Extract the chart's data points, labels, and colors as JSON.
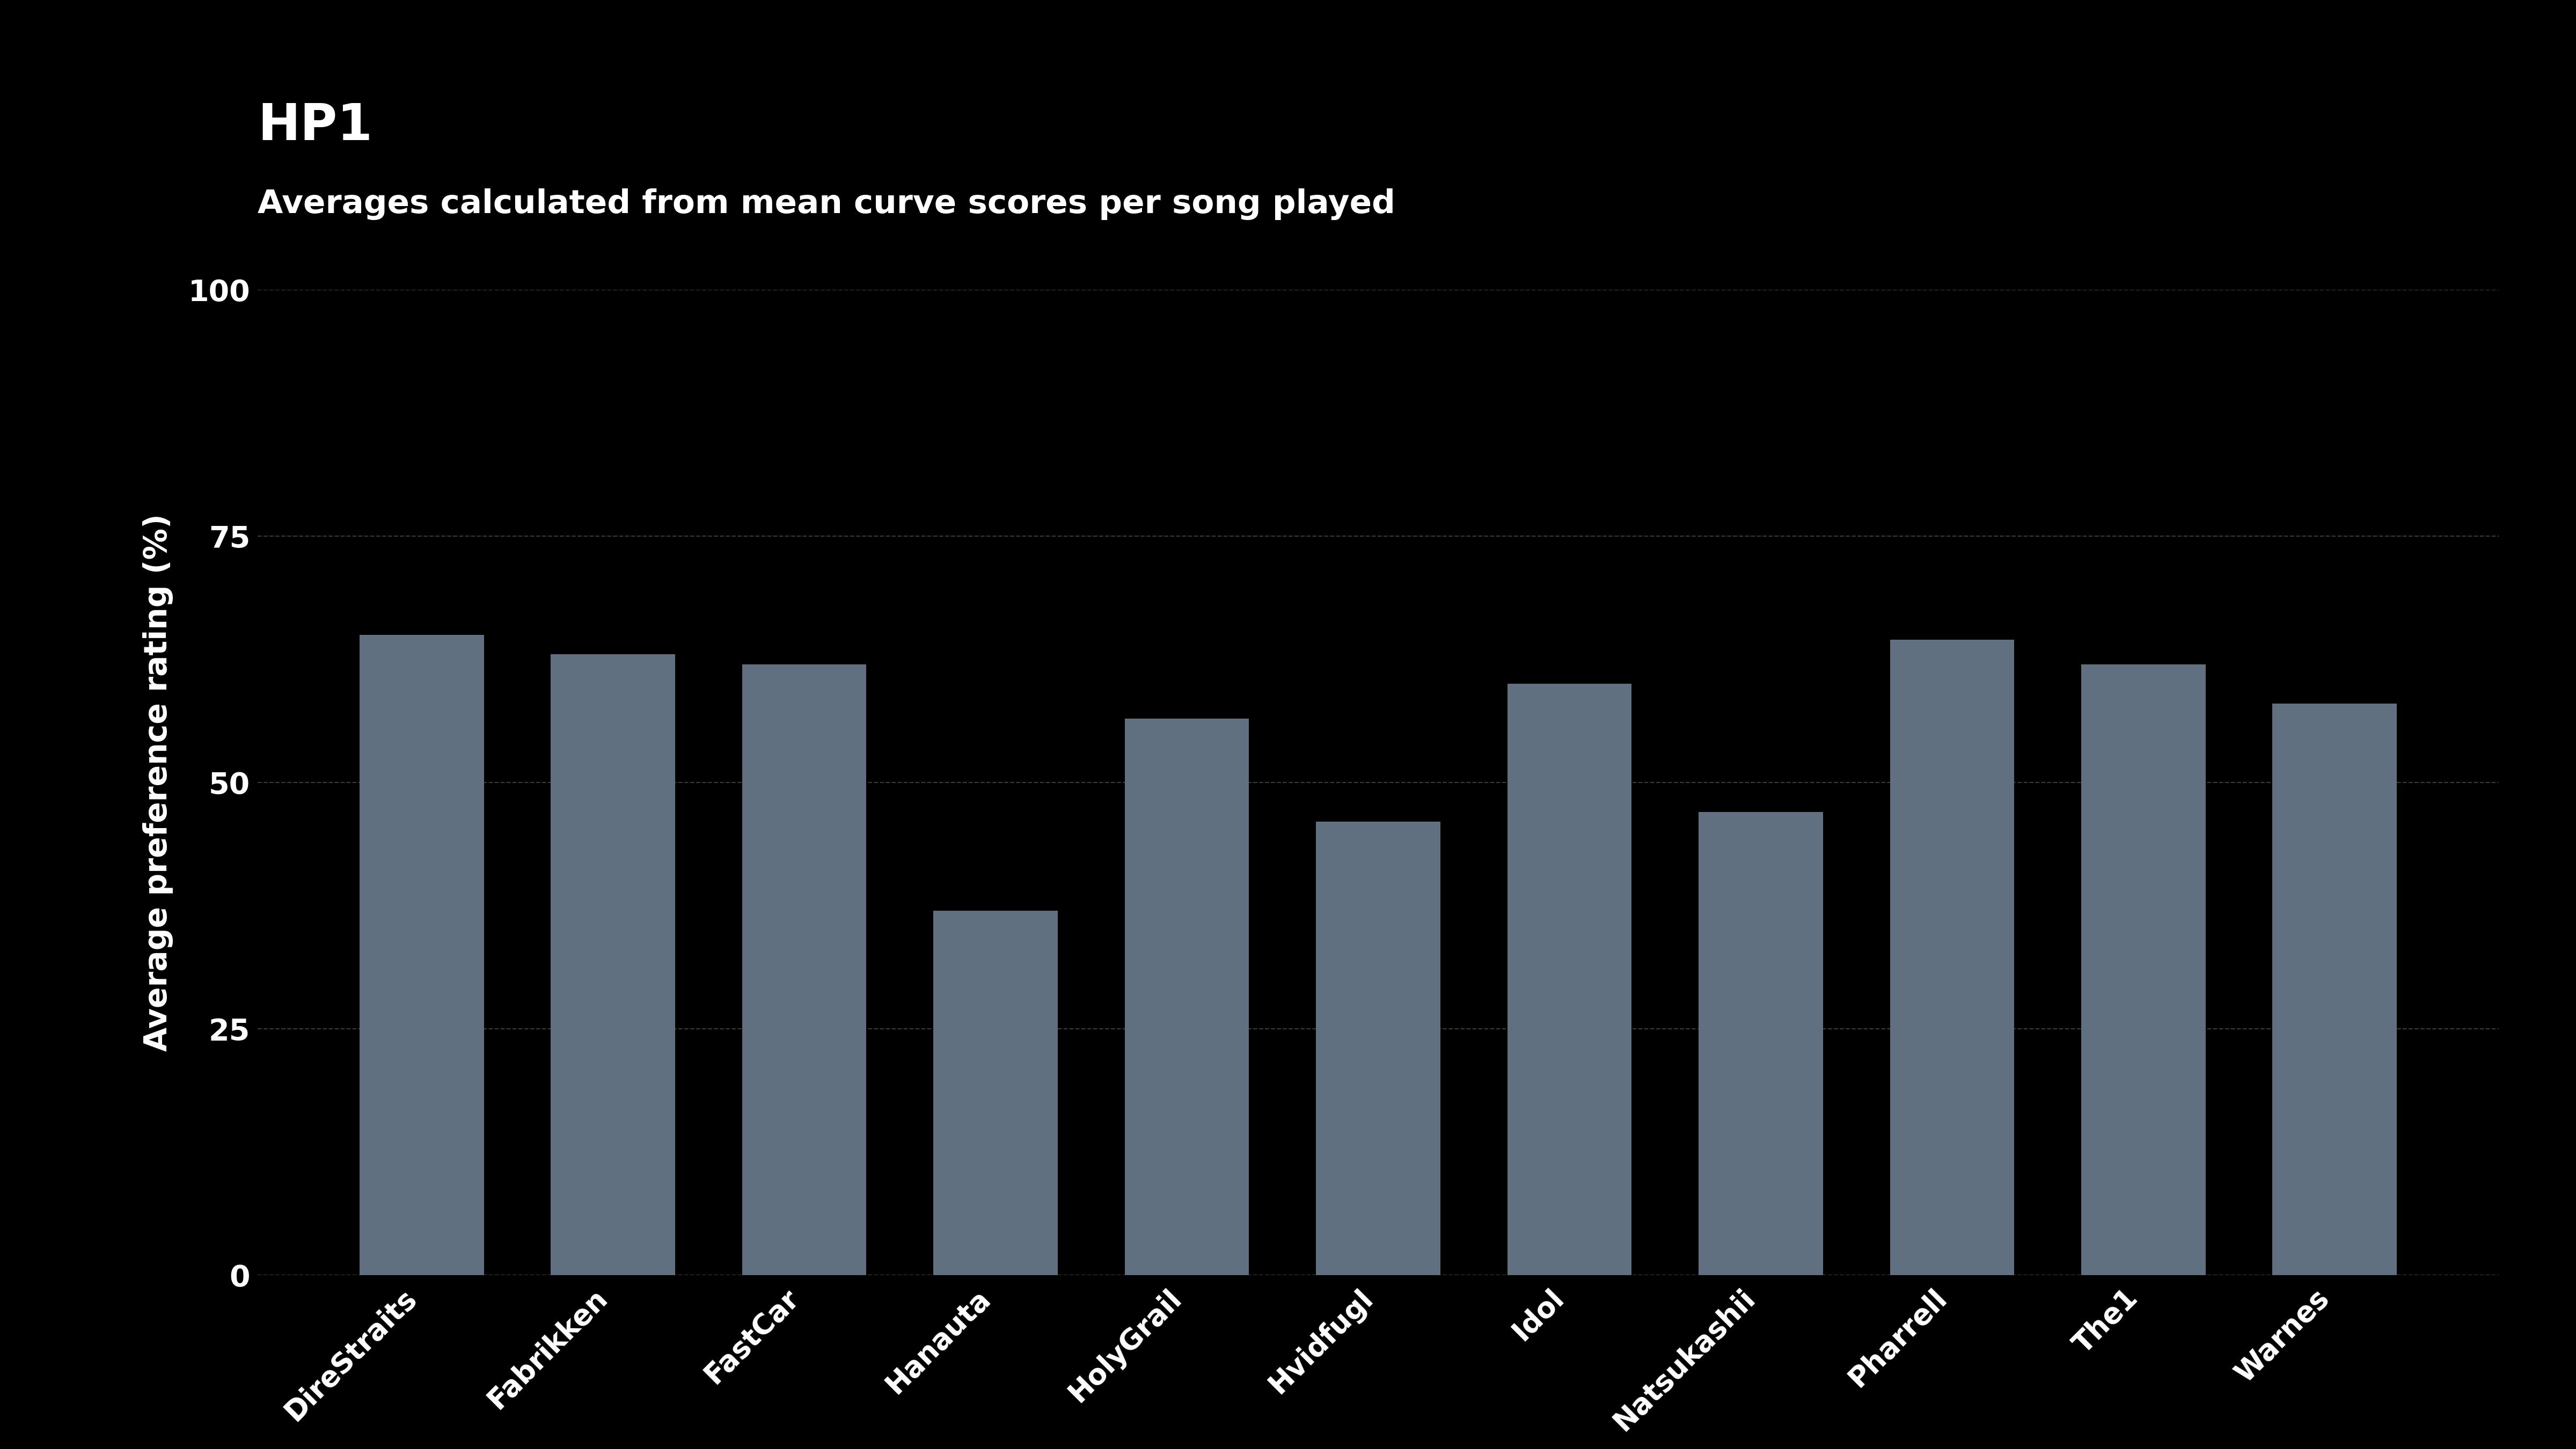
{
  "title": "HP1",
  "subtitle": "Averages calculated from mean curve scores per song played",
  "ylabel": "Average preference rating (%)",
  "categories": [
    "DireStraits",
    "Fabrikken",
    "FastCar",
    "Hanauta",
    "HolyGrail",
    "Hvidfugl",
    "Idol",
    "Natsukashii",
    "Pharrell",
    "The1",
    "Warnes"
  ],
  "values": [
    65.0,
    63.0,
    62.0,
    37.0,
    56.5,
    46.0,
    60.0,
    47.0,
    64.5,
    62.0,
    58.0
  ],
  "bar_color": "#607080",
  "background_color": "#000000",
  "text_color": "#ffffff",
  "grid_color": "#3a3a3a",
  "ylim": [
    0,
    100
  ],
  "yticks": [
    0,
    25,
    50,
    75,
    100
  ],
  "title_fontsize": 68,
  "subtitle_fontsize": 44,
  "ylabel_fontsize": 42,
  "tick_fontsize": 40,
  "xtick_fontsize": 38
}
